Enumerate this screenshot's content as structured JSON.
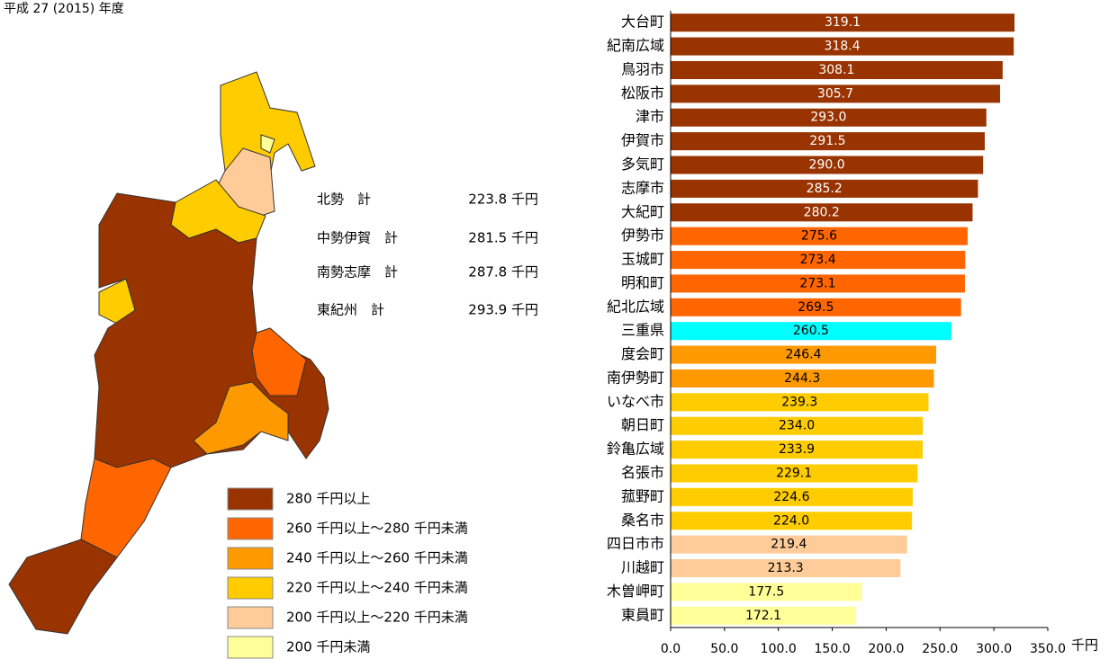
{
  "chart_data": {
    "type": "bar",
    "orientation": "horizontal",
    "subtitle": "平成 27 (2015) 年度",
    "categories": [
      "大台町",
      "紀南広域",
      "鳥羽市",
      "松阪市",
      "津市",
      "伊賀市",
      "多気町",
      "志摩市",
      "大紀町",
      "伊勢市",
      "玉城町",
      "明和町",
      "紀北広域",
      "三重県",
      "度会町",
      "南伊勢町",
      "いなべ市",
      "朝日町",
      "鈴亀広域",
      "名張市",
      "菰野町",
      "桑名市",
      "四日市市",
      "川越町",
      "木曽岬町",
      "東員町"
    ],
    "values": [
      319.1,
      318.4,
      308.1,
      305.7,
      293.0,
      291.5,
      290.0,
      285.2,
      280.2,
      275.6,
      273.4,
      273.1,
      269.5,
      260.5,
      246.4,
      244.3,
      239.3,
      234.0,
      233.9,
      229.1,
      224.6,
      224.0,
      219.4,
      213.3,
      177.5,
      172.1
    ],
    "value_labels": [
      "319.1",
      "318.4",
      "308.1",
      "305.7",
      "293.0",
      "291.5",
      "290.0",
      "285.2",
      "280.2",
      "275.6",
      "273.4",
      "273.1",
      "269.5",
      "260.5",
      "246.4",
      "244.3",
      "239.3",
      "234.0",
      "233.9",
      "229.1",
      "224.6",
      "224.0",
      "219.4",
      "213.3",
      "177.5",
      "172.1"
    ],
    "colors": [
      "#993300",
      "#993300",
      "#993300",
      "#993300",
      "#993300",
      "#993300",
      "#993300",
      "#993300",
      "#993300",
      "#ff6600",
      "#ff6600",
      "#ff6600",
      "#ff6600",
      "#00ffff",
      "#ff9900",
      "#ff9900",
      "#ffcc00",
      "#ffcc00",
      "#ffcc00",
      "#ffcc00",
      "#ffcc00",
      "#ffcc00",
      "#ffcc99",
      "#ffcc99",
      "#ffff99",
      "#ffff99"
    ],
    "xlim": [
      0,
      350
    ],
    "xticks": [
      {
        "value": 0,
        "label": "0.0"
      },
      {
        "value": 50,
        "label": "50.0"
      },
      {
        "value": 100,
        "label": "100.0"
      },
      {
        "value": 150,
        "label": "150.0"
      },
      {
        "value": 200,
        "label": "200.0"
      },
      {
        "value": 250,
        "label": "250.0"
      },
      {
        "value": 300,
        "label": "300.0"
      },
      {
        "value": 350,
        "label": "350.0"
      }
    ],
    "x_label": "千円",
    "region_totals": [
      {
        "name": "北勢　計",
        "value": "223.8 千円"
      },
      {
        "name": "中勢伊賀　計",
        "value": "281.5 千円"
      },
      {
        "name": "南勢志摩　計",
        "value": "287.8 千円"
      },
      {
        "name": "東紀州　計",
        "value": "293.9 千円"
      }
    ],
    "legend": [
      {
        "label": "280 千円以上",
        "color": "#993300"
      },
      {
        "label": "260 千円以上～280 千円未満",
        "color": "#ff6600"
      },
      {
        "label": "240 千円以上～260 千円未満",
        "color": "#ff9900"
      },
      {
        "label": "220 千円以上～240 千円未満",
        "color": "#ffcc00"
      },
      {
        "label": "200 千円以上～220 千円未満",
        "color": "#ffcc99"
      },
      {
        "label": "200 千円未満",
        "color": "#ffff99"
      }
    ]
  }
}
